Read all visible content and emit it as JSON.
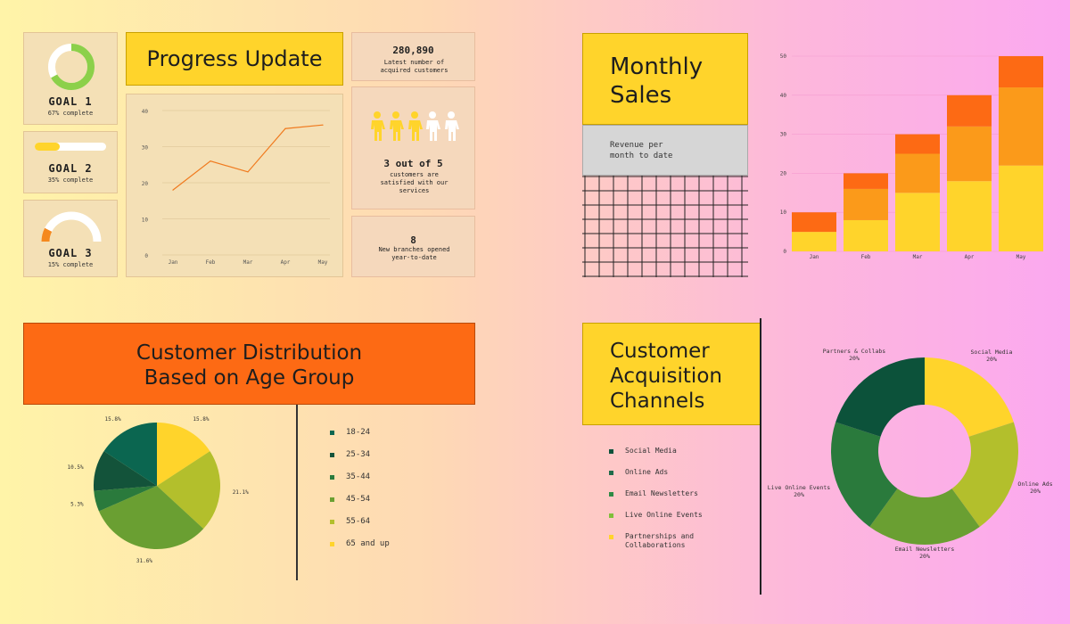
{
  "progress": {
    "title": "Progress Update",
    "goals": [
      {
        "title": "GOAL 1",
        "sub": "67% complete",
        "fraction": 0.67
      },
      {
        "title": "GOAL 2",
        "sub": "35% complete",
        "fraction": 0.35
      },
      {
        "title": "GOAL 3",
        "sub": "15% complete",
        "fraction": 0.15
      }
    ],
    "stats": {
      "customers_value": "280,890",
      "customers_label": "Latest number of acquired customers",
      "satisfied_value": "3 out of 5",
      "satisfied_label": "customers are satisfied with our services",
      "satisfied_count": 3,
      "satisfied_total": 5,
      "branches_value": "8",
      "branches_label": "New branches opened year-to-date"
    }
  },
  "monthly": {
    "title_line1": "Monthly",
    "title_line2": "Sales",
    "sub_line1": "Revenue per",
    "sub_line2": "month to date"
  },
  "age": {
    "title_line1": "Customer Distribution",
    "title_line2": "Based on Age Group",
    "legend": [
      "18-24",
      "25-34",
      "35-44",
      "45-54",
      "55-64",
      "65 and up"
    ]
  },
  "channels": {
    "title_line1": "Customer",
    "title_line2": "Acquisition",
    "title_line3": "Channels",
    "legend": [
      "Social Media",
      "Online Ads",
      "Email Newsletters",
      "Live Online Events",
      "Partnerships and",
      "Collaborations"
    ]
  },
  "colors": {
    "line": "#f07a1e",
    "goal1": "#8cd04a",
    "goal2": "#ffd42b",
    "goal3": "#f5891e",
    "bar_bottom": "#ffd42b",
    "bar_middle": "#fb9a1a",
    "bar_top": "#fd6a14",
    "orange_header": "#fd6a14"
  },
  "chart_data": [
    {
      "type": "line",
      "x": [
        "Jan",
        "Feb",
        "Mar",
        "Apr",
        "May"
      ],
      "y": [
        18,
        26,
        23,
        35,
        36
      ],
      "ylim": [
        0,
        40
      ],
      "yticks": [
        0,
        10,
        20,
        30,
        40
      ],
      "grid": true
    },
    {
      "type": "bar",
      "stacked": true,
      "categories": [
        "Jan",
        "Feb",
        "Mar",
        "Apr",
        "May"
      ],
      "series": [
        {
          "values": [
            5,
            8,
            15,
            18,
            22
          ]
        },
        {
          "values": [
            0,
            8,
            10,
            14,
            20
          ]
        },
        {
          "values": [
            5,
            4,
            5,
            8,
            8
          ]
        }
      ],
      "ylim": [
        0,
        50
      ],
      "yticks": [
        0,
        10,
        20,
        30,
        40,
        50
      ],
      "grid": true
    },
    {
      "type": "pie",
      "labels": [
        "18-24",
        "25-34",
        "35-44",
        "45-54",
        "55-64",
        "65 and up"
      ],
      "values": [
        15.8,
        10.5,
        5.3,
        31.6,
        21.1,
        15.8
      ],
      "value_labels": [
        "15.8%",
        "10.5%",
        "5.3%",
        "31.6%",
        "21.1%",
        "15.8%"
      ]
    },
    {
      "type": "pie",
      "donut": true,
      "labels": [
        "Social Media",
        "Online Ads",
        "Email Newsletters",
        "Live Online Events",
        "Partners & Collabs"
      ],
      "values": [
        20,
        20,
        20,
        20,
        20
      ],
      "value_labels": [
        "20%",
        "20%",
        "20%",
        "20%",
        "20%"
      ]
    }
  ]
}
